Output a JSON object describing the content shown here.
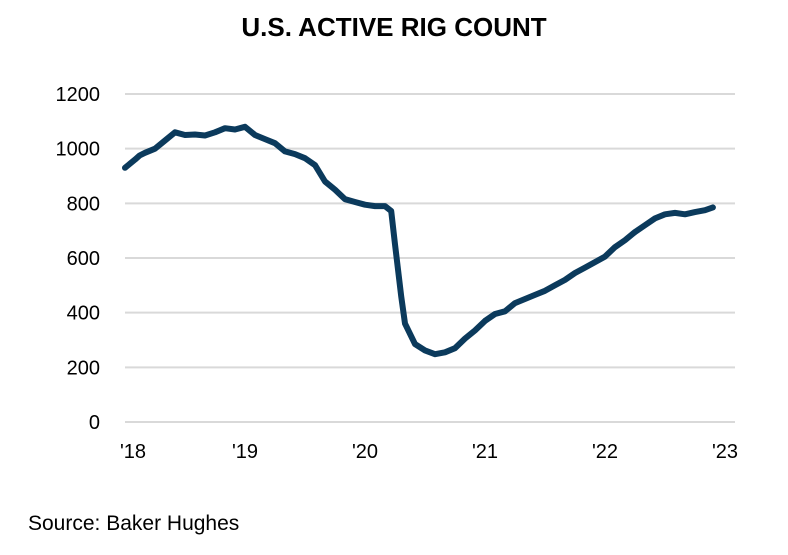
{
  "chart_data": {
    "type": "line",
    "title": "U.S. ACTIVE RIG COUNT",
    "xlabel": "",
    "ylabel": "",
    "ylim": [
      0,
      1200
    ],
    "yticks": [
      0,
      200,
      400,
      600,
      800,
      1000,
      1200
    ],
    "xlim": [
      "2018-01",
      "2023-01"
    ],
    "xticks": [
      {
        "date": "2018-01",
        "label": "'18"
      },
      {
        "date": "2019-01",
        "label": "'19"
      },
      {
        "date": "2020-01",
        "label": "'20"
      },
      {
        "date": "2021-01",
        "label": "'21"
      },
      {
        "date": "2022-01",
        "label": "'22"
      },
      {
        "date": "2023-01",
        "label": "'23"
      }
    ],
    "grid": "horizontal",
    "line_color": "#0b3a5c",
    "series": [
      {
        "points": [
          [
            "2018-01",
            930
          ],
          [
            "2018-02",
            960
          ],
          [
            "2018-02-15",
            975
          ],
          [
            "2018-03",
            985
          ],
          [
            "2018-04",
            1000
          ],
          [
            "2018-05",
            1030
          ],
          [
            "2018-06",
            1060
          ],
          [
            "2018-07",
            1050
          ],
          [
            "2018-08",
            1052
          ],
          [
            "2018-09",
            1048
          ],
          [
            "2018-10",
            1060
          ],
          [
            "2018-11",
            1075
          ],
          [
            "2018-12",
            1070
          ],
          [
            "2019-01",
            1080
          ],
          [
            "2019-02",
            1050
          ],
          [
            "2019-03",
            1035
          ],
          [
            "2019-04",
            1020
          ],
          [
            "2019-05",
            990
          ],
          [
            "2019-06",
            980
          ],
          [
            "2019-07",
            965
          ],
          [
            "2019-08",
            940
          ],
          [
            "2019-09",
            880
          ],
          [
            "2019-10",
            850
          ],
          [
            "2019-11",
            815
          ],
          [
            "2019-12",
            805
          ],
          [
            "2020-01",
            795
          ],
          [
            "2020-02",
            790
          ],
          [
            "2020-03",
            790
          ],
          [
            "2020-03-20",
            772
          ],
          [
            "2020-04",
            650
          ],
          [
            "2020-04-20",
            460
          ],
          [
            "2020-05",
            360
          ],
          [
            "2020-06",
            285
          ],
          [
            "2020-07",
            262
          ],
          [
            "2020-08",
            248
          ],
          [
            "2020-09",
            255
          ],
          [
            "2020-10",
            270
          ],
          [
            "2020-11",
            305
          ],
          [
            "2020-12",
            335
          ],
          [
            "2021-01",
            370
          ],
          [
            "2021-02",
            395
          ],
          [
            "2021-03",
            405
          ],
          [
            "2021-04",
            435
          ],
          [
            "2021-05",
            450
          ],
          [
            "2021-06",
            465
          ],
          [
            "2021-07",
            480
          ],
          [
            "2021-08",
            500
          ],
          [
            "2021-09",
            520
          ],
          [
            "2021-10",
            545
          ],
          [
            "2021-11",
            565
          ],
          [
            "2021-12",
            585
          ],
          [
            "2022-01",
            605
          ],
          [
            "2022-02",
            640
          ],
          [
            "2022-03",
            665
          ],
          [
            "2022-04",
            695
          ],
          [
            "2022-05",
            720
          ],
          [
            "2022-06",
            745
          ],
          [
            "2022-07",
            760
          ],
          [
            "2022-08",
            765
          ],
          [
            "2022-09",
            760
          ],
          [
            "2022-10",
            768
          ],
          [
            "2022-11",
            775
          ],
          [
            "2022-11-25",
            785
          ]
        ]
      }
    ],
    "source": "Source: Baker Hughes"
  }
}
